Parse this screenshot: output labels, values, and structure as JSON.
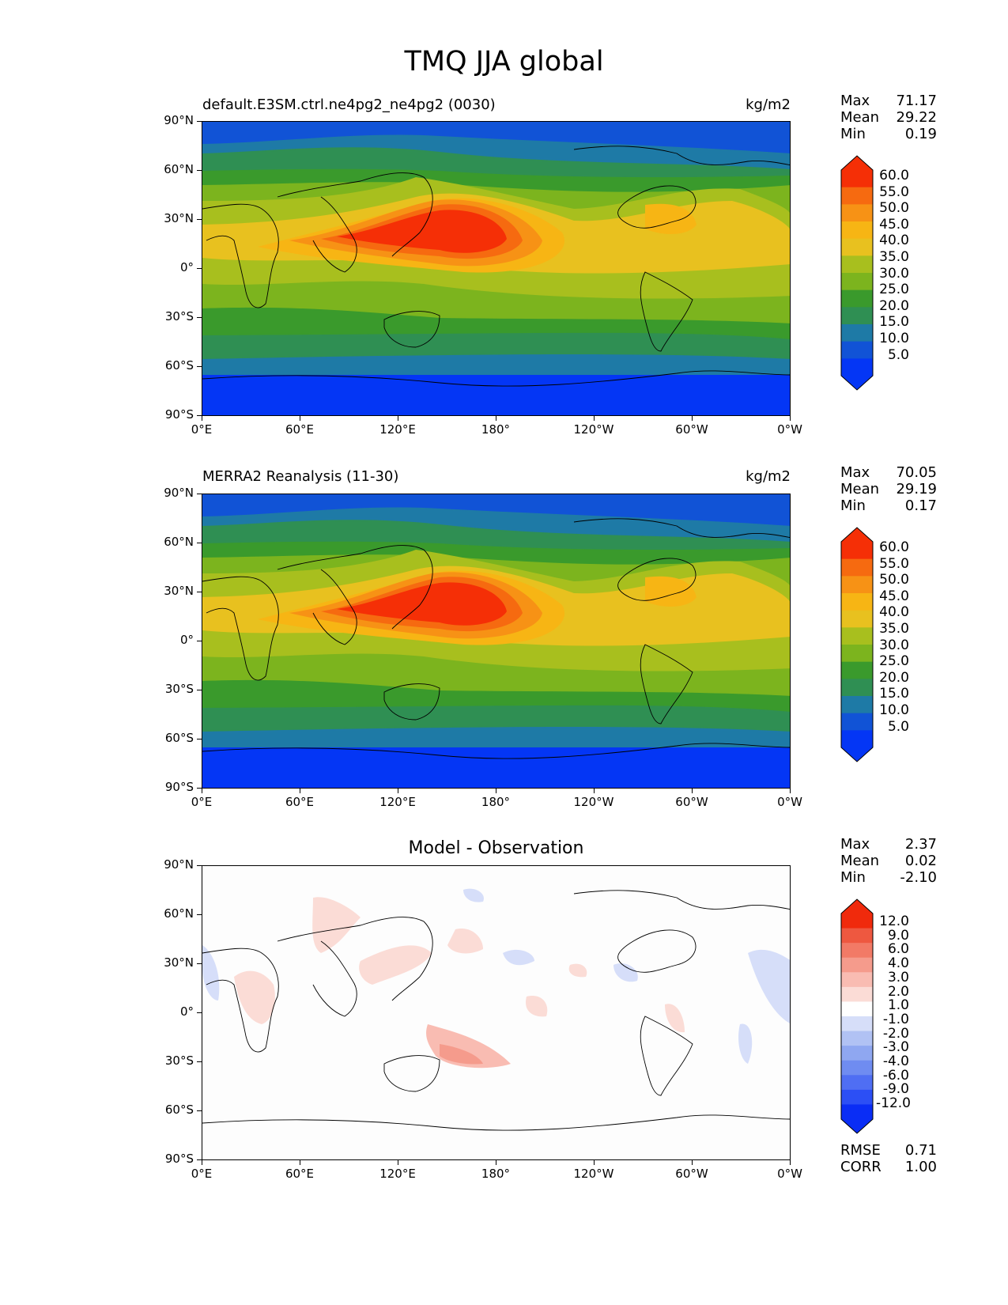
{
  "title": "TMQ JJA global",
  "lat_ticks": [
    "90°N",
    "60°N",
    "30°N",
    "0°",
    "30°S",
    "60°S",
    "90°S"
  ],
  "lon_ticks": [
    "0°E",
    "60°E",
    "120°E",
    "180°",
    "120°W",
    "60°W",
    "0°W"
  ],
  "panels": [
    {
      "title_left": "default.E3SM.ctrl.ne4pg2_ne4pg2 (0030)",
      "title_right": "kg/m2",
      "stats": [
        {
          "label": "Max",
          "value": "71.17"
        },
        {
          "label": "Mean",
          "value": "29.22"
        },
        {
          "label": "Min",
          "value": "0.19"
        }
      ],
      "colorbar_labels": [
        "60.0",
        "55.0",
        "50.0",
        "45.0",
        "40.0",
        "35.0",
        "30.0",
        "25.0",
        "20.0",
        "15.0",
        "10.0",
        "5.0"
      ]
    },
    {
      "title_left": "MERRA2 Reanalysis (11-30)",
      "title_right": "kg/m2",
      "stats": [
        {
          "label": "Max",
          "value": "70.05"
        },
        {
          "label": "Mean",
          "value": "29.19"
        },
        {
          "label": "Min",
          "value": "0.17"
        }
      ],
      "colorbar_labels": [
        "60.0",
        "55.0",
        "50.0",
        "45.0",
        "40.0",
        "35.0",
        "30.0",
        "25.0",
        "20.0",
        "15.0",
        "10.0",
        "5.0"
      ]
    },
    {
      "title_center": "Model - Observation",
      "stats": [
        {
          "label": "Max",
          "value": "2.37"
        },
        {
          "label": "Mean",
          "value": "0.02"
        },
        {
          "label": "Min",
          "value": "-2.10"
        }
      ],
      "colorbar_labels": [
        "12.0",
        "9.0",
        "6.0",
        "4.0",
        "3.0",
        "2.0",
        "1.0",
        "-1.0",
        "-2.0",
        "-3.0",
        "-4.0",
        "-6.0",
        "-9.0",
        "-12.0"
      ],
      "bottom_stats": [
        {
          "label": "RMSE",
          "value": "0.71"
        },
        {
          "label": "CORR",
          "value": "1.00"
        }
      ]
    }
  ],
  "colors": {
    "field_levels": [
      "#0436f5",
      "#1153d6",
      "#1e7aa6",
      "#2f8f53",
      "#3a9a2c",
      "#7cb41e",
      "#a8bf1e",
      "#e8c11f",
      "#f7b514",
      "#f79215",
      "#f66a10",
      "#f52f06"
    ],
    "diff_levels": [
      "#0a2df5",
      "#2c4ff5",
      "#4f6ef3",
      "#6f8cf1",
      "#8fa7f1",
      "#b1c2f4",
      "#d6def9",
      "#ffffff",
      "#fbdcd6",
      "#f9bcb2",
      "#f59b8c",
      "#f27a66",
      "#ee5840",
      "#f02a0c"
    ]
  }
}
